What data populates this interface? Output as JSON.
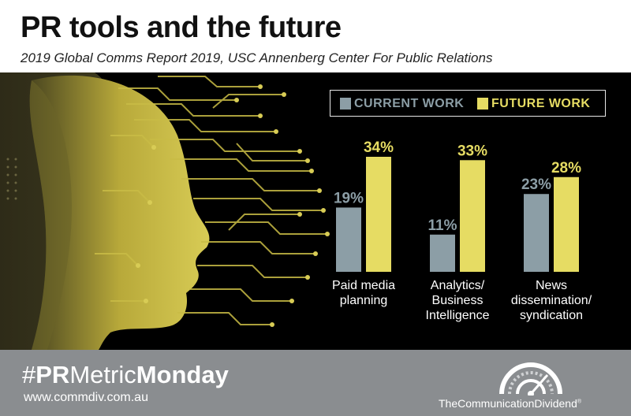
{
  "header": {
    "title": "PR tools and the future",
    "subtitle": "2019 Global Comms Report 2019, USC Annenberg Center For Public Relations"
  },
  "colors": {
    "current": "#8c9ea6",
    "future": "#e6dc63",
    "background": "#000000",
    "footer": "#8a8d90"
  },
  "chart_data": {
    "type": "bar",
    "categories": [
      [
        "Paid media",
        "planning"
      ],
      [
        "Analytics/",
        "Business",
        "Intelligence"
      ],
      [
        "News",
        "dissemination/",
        "syndication"
      ]
    ],
    "series": [
      {
        "name": "CURRENT WORK",
        "values": [
          19,
          11,
          23
        ]
      },
      {
        "name": "FUTURE WORK",
        "values": [
          34,
          33,
          28
        ]
      }
    ],
    "value_suffix": "%",
    "ylim": [
      0,
      34
    ],
    "legend": "top-right",
    "grid": false
  },
  "footer": {
    "hashtag_prefix": "#",
    "hashtag_pr": "PR",
    "hashtag_metric": "Metric",
    "hashtag_monday": "Monday",
    "website": "www.commdiv.com.au",
    "brand": "TheCommunicationDividend",
    "brand_mark": "®"
  }
}
